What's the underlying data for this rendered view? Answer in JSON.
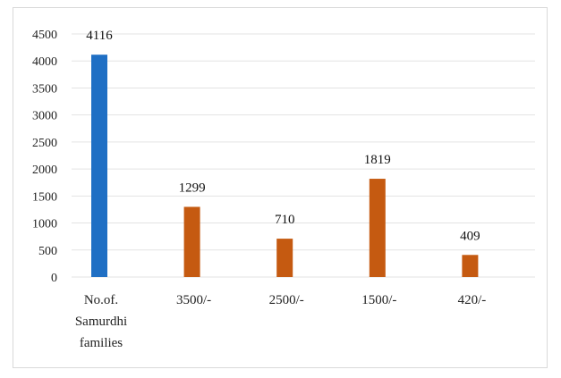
{
  "chart_data": {
    "type": "bar",
    "categories": [
      [
        "No.of.",
        "Samurdhi",
        "families"
      ],
      [
        "3500/-"
      ],
      [
        "2500/-"
      ],
      [
        "1500/-"
      ],
      [
        "420/-"
      ]
    ],
    "values": [
      4116,
      1299,
      710,
      1819,
      409
    ],
    "data_labels": [
      "4116",
      "1299",
      "710",
      "1819",
      "409"
    ],
    "bar_colors": [
      "#1f6fc4",
      "#c55a11",
      "#c55a11",
      "#c55a11",
      "#c55a11"
    ],
    "ylim": [
      0,
      4500
    ],
    "yticks": [
      "0",
      "500",
      "1000",
      "1500",
      "2000",
      "2500",
      "3000",
      "3500",
      "4000",
      "4500"
    ],
    "title": "",
    "xlabel": "",
    "ylabel": "",
    "grid": true,
    "legend": "none"
  }
}
